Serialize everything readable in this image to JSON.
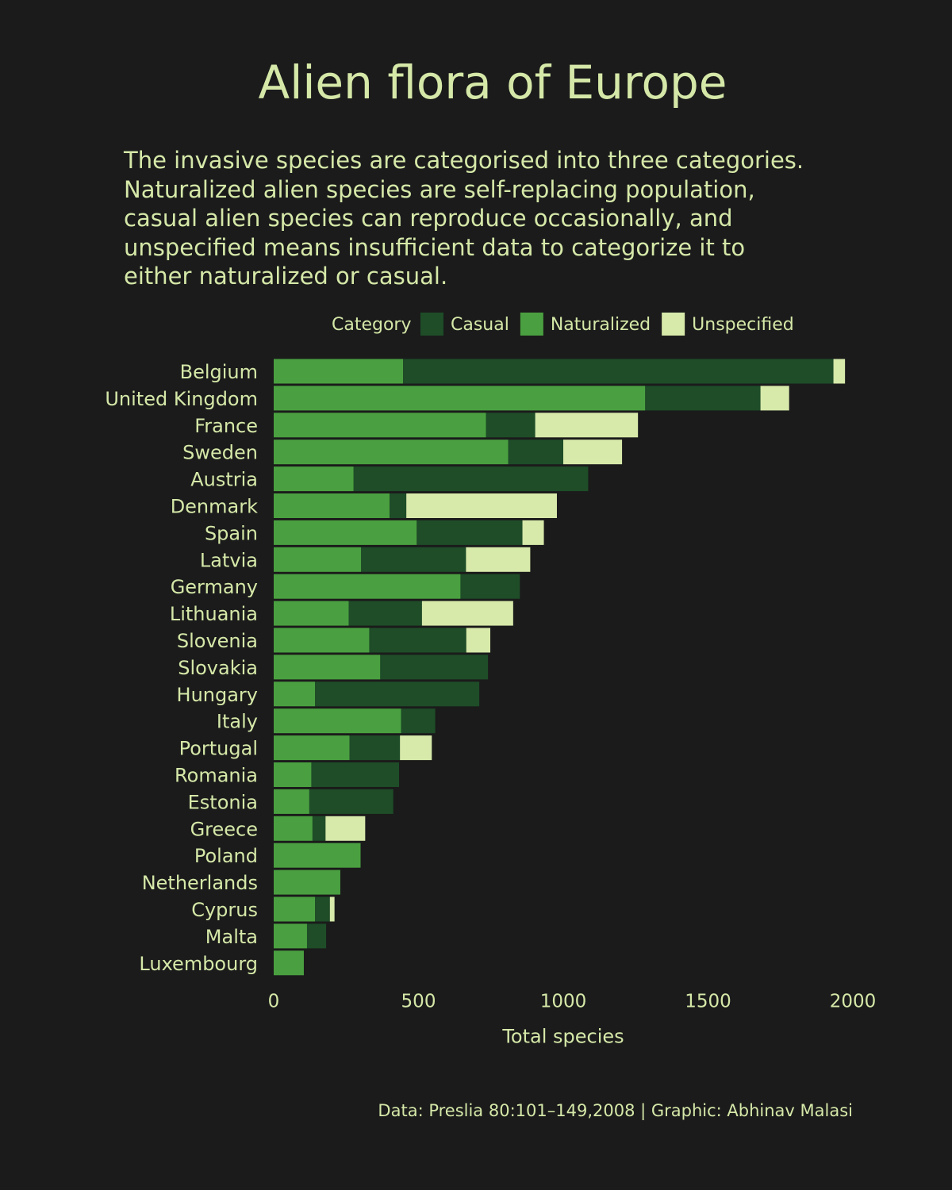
{
  "title": "Alien flora of Europe",
  "subtitle_lines": [
    "The invasive species are categorised into three categories.",
    "Naturalized alien species are self-replacing population,",
    "casual alien species can reproduce occasionally, and",
    "unspecified means insufficient data to categorize it to",
    "either naturalized or casual."
  ],
  "caption": "Data: Preslia 80:101–149,2008 | Graphic: Abhinav Malasi",
  "colors": {
    "background": "#1b1b1b",
    "text": "#d5e8a8",
    "Casual": "#1e4d28",
    "Naturalized": "#4aa040",
    "Unspecified": "#d7eaaa"
  },
  "chart_data": {
    "type": "bar",
    "orientation": "horizontal",
    "stacked": true,
    "legend_title": "Category",
    "legend_entries": [
      "Casual",
      "Naturalized",
      "Unspecified"
    ],
    "legend_position": "top",
    "stack_order": [
      "Naturalized",
      "Casual",
      "Unspecified"
    ],
    "xlabel": "Total species",
    "ylabel": "",
    "xlim": [
      0,
      2000
    ],
    "xticks": [
      0,
      500,
      1000,
      1500,
      2000
    ],
    "categories": [
      "Belgium",
      "United Kingdom",
      "France",
      "Sweden",
      "Austria",
      "Denmark",
      "Spain",
      "Latvia",
      "Germany",
      "Lithuania",
      "Slovenia",
      "Slovakia",
      "Hungary",
      "Italy",
      "Portugal",
      "Romania",
      "Estonia",
      "Greece",
      "Poland",
      "Netherlands",
      "Cyprus",
      "Malta",
      "Luxembourg"
    ],
    "series": [
      {
        "name": "Naturalized",
        "values": [
          447,
          1283,
          733,
          810,
          276,
          400,
          494,
          302,
          645,
          259,
          330,
          368,
          143,
          440,
          262,
          130,
          123,
          134,
          300,
          230,
          143,
          115,
          104
        ]
      },
      {
        "name": "Casual",
        "values": [
          1486,
          398,
          170,
          190,
          810,
          58,
          365,
          362,
          205,
          253,
          335,
          372,
          567,
          118,
          174,
          303,
          290,
          45,
          0,
          0,
          51,
          66,
          0
        ]
      },
      {
        "name": "Unspecified",
        "values": [
          40,
          99,
          355,
          203,
          0,
          520,
          74,
          222,
          0,
          315,
          83,
          0,
          0,
          0,
          110,
          0,
          0,
          137,
          0,
          0,
          16,
          0,
          0
        ]
      }
    ],
    "grid": false
  }
}
